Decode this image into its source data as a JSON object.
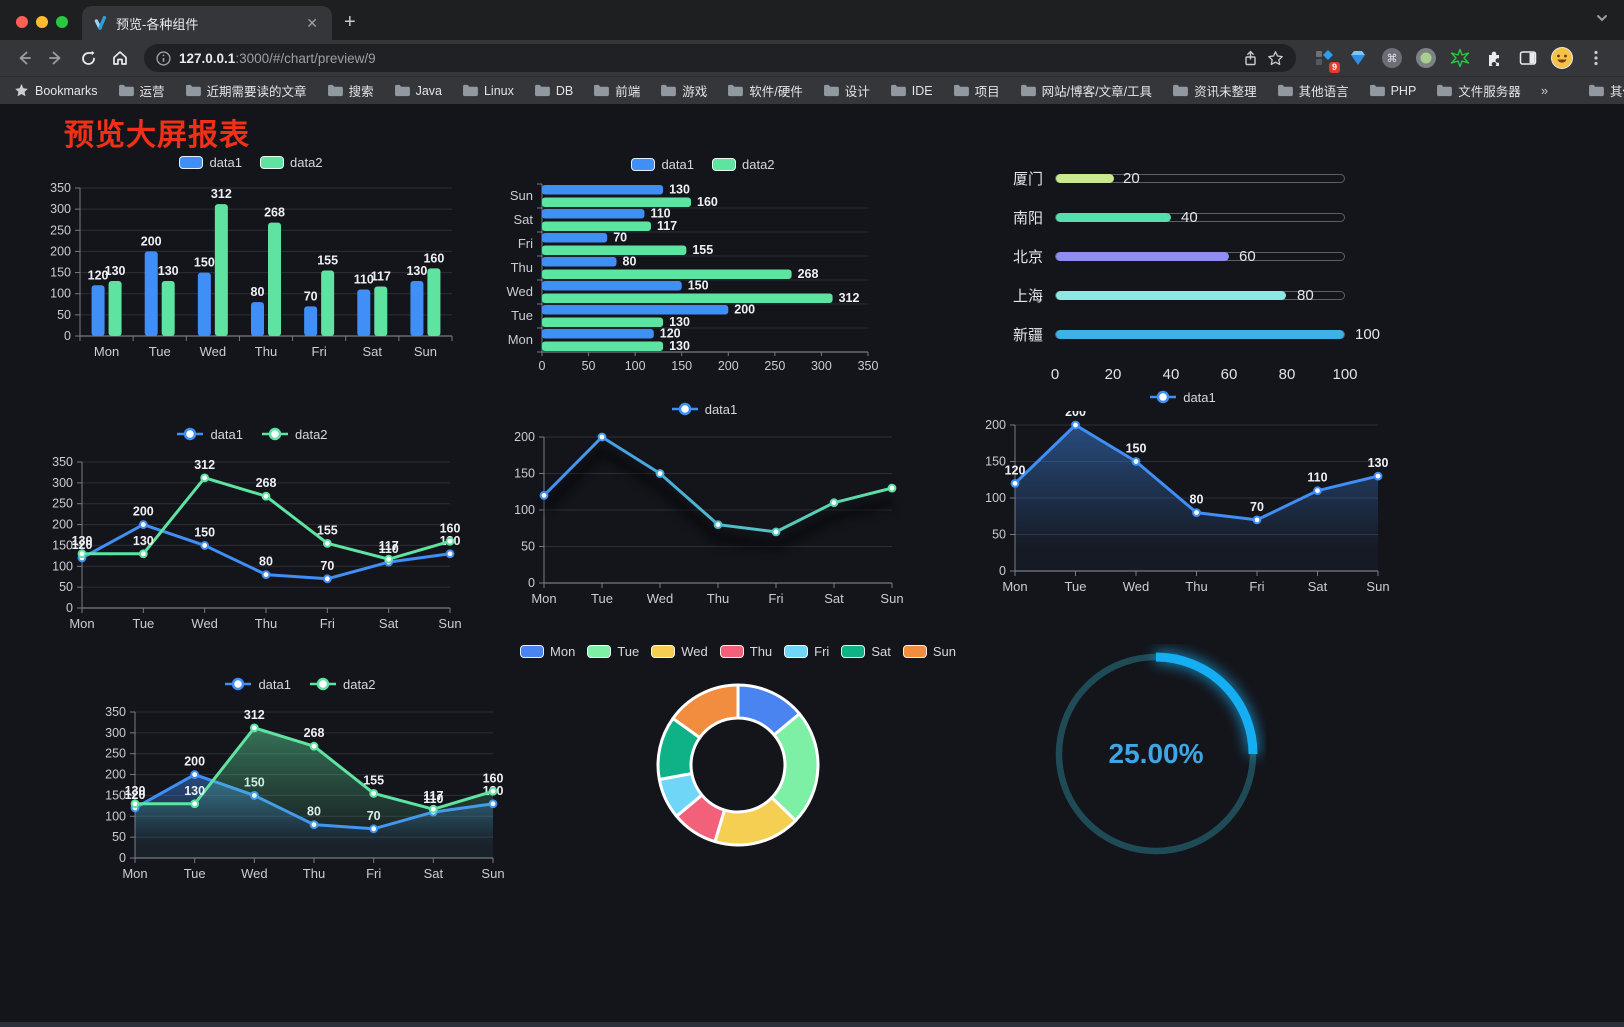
{
  "browser": {
    "tab_title": "预览-各种组件",
    "url_host": "127.0.0.1",
    "url_rest": ":3000/#/chart/preview/9",
    "bookmarks_label": "Bookmarks",
    "bookmarks": [
      "运营",
      "近期需要读的文章",
      "搜索",
      "Java",
      "Linux",
      "DB",
      "前端",
      "游戏",
      "软件/硬件",
      "设计",
      "IDE",
      "项目",
      "网站/博客/文章/工具",
      "资讯未整理",
      "其他语言",
      "PHP",
      "文件服务器"
    ],
    "overflow_label": "»",
    "other_bookmarks_label": "其他书签",
    "extension_badge": "9"
  },
  "page": {
    "title": "预览大屏报表",
    "title_color": "#f23018"
  },
  "chart_data": [
    {
      "id": "bar-grouped",
      "type": "bar",
      "categories": [
        "Mon",
        "Tue",
        "Wed",
        "Thu",
        "Fri",
        "Sat",
        "Sun"
      ],
      "series": [
        {
          "name": "data1",
          "color": "#3f8ff7",
          "values": [
            120,
            200,
            150,
            80,
            70,
            110,
            130
          ]
        },
        {
          "name": "data2",
          "color": "#5fe3a1",
          "values": [
            130,
            130,
            312,
            268,
            155,
            117,
            160
          ]
        }
      ],
      "ylim": [
        0,
        350
      ],
      "yticks": [
        0,
        50,
        100,
        150,
        200,
        250,
        300,
        350
      ],
      "labels": true,
      "legend_position": "top",
      "grid": true
    },
    {
      "id": "bar-horizontal",
      "type": "hbar",
      "categories_bottom_to_top": [
        "Mon",
        "Tue",
        "Wed",
        "Thu",
        "Fri",
        "Sat",
        "Sun"
      ],
      "series": [
        {
          "name": "data1",
          "color": "#3f8ff7",
          "values": [
            120,
            200,
            150,
            80,
            70,
            110,
            130
          ]
        },
        {
          "name": "data2",
          "color": "#5fe3a1",
          "values": [
            130,
            130,
            312,
            268,
            155,
            117,
            160
          ]
        }
      ],
      "xlim": [
        0,
        350
      ],
      "xticks": [
        0,
        50,
        100,
        150,
        200,
        250,
        300,
        350
      ],
      "labels": true,
      "legend_position": "top",
      "grid": true
    },
    {
      "id": "progress-list",
      "type": "progress",
      "max": 100,
      "items": [
        {
          "label": "厦门",
          "value": 20,
          "color": "#c9e98f"
        },
        {
          "label": "南阳",
          "value": 40,
          "color": "#54dfad"
        },
        {
          "label": "北京",
          "value": 60,
          "color": "#8f8df2"
        },
        {
          "label": "上海",
          "value": 80,
          "color": "#8be8e3"
        },
        {
          "label": "新疆",
          "value": 100,
          "color": "#3cb2e5"
        }
      ],
      "xticks": [
        0,
        20,
        40,
        60,
        80,
        100
      ]
    },
    {
      "id": "line-dual",
      "type": "line",
      "categories": [
        "Mon",
        "Tue",
        "Wed",
        "Thu",
        "Fri",
        "Sat",
        "Sun"
      ],
      "series": [
        {
          "name": "data1",
          "color": "#3f8ff7",
          "values": [
            120,
            200,
            150,
            80,
            70,
            110,
            130
          ]
        },
        {
          "name": "data2",
          "color": "#5fe3a1",
          "values": [
            130,
            130,
            312,
            268,
            155,
            117,
            160
          ]
        }
      ],
      "ylim": [
        0,
        350
      ],
      "yticks": [
        0,
        50,
        100,
        150,
        200,
        250,
        300,
        350
      ],
      "labels": true,
      "legend_position": "top",
      "grid": true
    },
    {
      "id": "line-gradient",
      "type": "line",
      "categories": [
        "Mon",
        "Tue",
        "Wed",
        "Thu",
        "Fri",
        "Sat",
        "Sun"
      ],
      "series": [
        {
          "name": "data1",
          "color": "#3f8ff7",
          "gradient_to": "#5fe3a1",
          "shadow": true,
          "values": [
            120,
            200,
            150,
            80,
            70,
            110,
            130
          ]
        }
      ],
      "ylim": [
        0,
        200
      ],
      "yticks": [
        0,
        50,
        100,
        150,
        200
      ],
      "labels": false,
      "legend_position": "top",
      "grid": true
    },
    {
      "id": "area-single",
      "type": "line",
      "categories": [
        "Mon",
        "Tue",
        "Wed",
        "Thu",
        "Fri",
        "Sat",
        "Sun"
      ],
      "series": [
        {
          "name": "data1",
          "color": "#3f8ff7",
          "area": true,
          "values": [
            120,
            200,
            150,
            80,
            70,
            110,
            130
          ]
        }
      ],
      "ylim": [
        0,
        200
      ],
      "yticks": [
        0,
        50,
        100,
        150,
        200
      ],
      "labels": true,
      "legend_position": "top",
      "grid": true
    },
    {
      "id": "area-dual",
      "type": "line",
      "categories": [
        "Mon",
        "Tue",
        "Wed",
        "Thu",
        "Fri",
        "Sat",
        "Sun"
      ],
      "series": [
        {
          "name": "data1",
          "color": "#3f8ff7",
          "area": true,
          "values": [
            120,
            200,
            150,
            80,
            70,
            110,
            130
          ]
        },
        {
          "name": "data2",
          "color": "#5fe3a1",
          "area": true,
          "values": [
            130,
            130,
            312,
            268,
            155,
            117,
            160
          ]
        }
      ],
      "ylim": [
        0,
        350
      ],
      "yticks": [
        0,
        50,
        100,
        150,
        200,
        250,
        300,
        350
      ],
      "labels": true,
      "legend_position": "top",
      "grid": true
    },
    {
      "id": "donut",
      "type": "pie",
      "inner_radius": 47,
      "outer_radius": 80,
      "items": [
        {
          "label": "Mon",
          "value": 120,
          "color": "#4a84f0"
        },
        {
          "label": "Tue",
          "value": 200,
          "color": "#7df0a6"
        },
        {
          "label": "Wed",
          "value": 150,
          "color": "#f5cf52"
        },
        {
          "label": "Thu",
          "value": 80,
          "color": "#f2607a"
        },
        {
          "label": "Fri",
          "value": 70,
          "color": "#6fd6f7"
        },
        {
          "label": "Sat",
          "value": 110,
          "color": "#0fb287"
        },
        {
          "label": "Sun",
          "value": 130,
          "color": "#f28c3e"
        }
      ],
      "legend_position": "top"
    },
    {
      "id": "gauge",
      "type": "gauge",
      "percent": 25,
      "value_text": "25.00%",
      "arc_color": "#16aef2",
      "track_color": "#1f4b57",
      "text_color": "#3fa6e5"
    }
  ]
}
